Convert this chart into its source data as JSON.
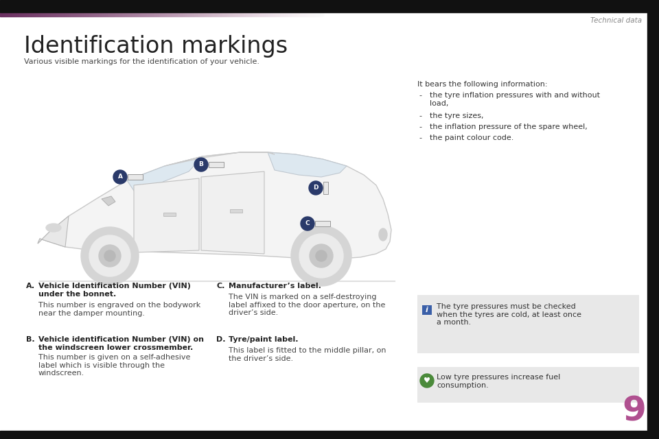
{
  "page_bg": "#ffffff",
  "header_text": "Technical data",
  "header_color": "#888888",
  "title": "Identification markings",
  "title_color": "#222222",
  "subtitle": "Various visible markings for the identification of your vehicle.",
  "subtitle_color": "#444444",
  "right_info_title": "It bears the following information:",
  "right_info_bullets": [
    "the tyre inflation pressures with and without\nload,",
    "the tyre sizes,",
    "the inflation pressure of the spare wheel,",
    "the paint colour code."
  ],
  "note_box1_color": "#e8e8e8",
  "note_box1_icon_color": "#3a5fa8",
  "note_box1_text": "The tyre pressures must be checked\nwhen the tyres are cold, at least once\na month.",
  "note_box2_color": "#e8e8e8",
  "note_box2_icon_color": "#4a8a3a",
  "note_box2_text": "Low tyre pressures increase fuel\nconsumption.",
  "section_number_color": "#b05090",
  "section_number": "9",
  "label_a_letter": "A.",
  "label_a_title_bold": "Vehicle Identification Number (VIN)\nunder the bonnet.",
  "label_a_body": "This number is engraved on the bodywork\nnear the damper mounting.",
  "label_b_letter": "B.",
  "label_b_title_bold": "Vehicle identification Number (VIN) on\nthe windscreen lower crossmember.",
  "label_b_body": "This number is given on a self-adhesive\nlabel which is visible through the\nwindscreen.",
  "label_c_letter": "C.",
  "label_c_title_bold": "Manufacturer’s label.",
  "label_c_body": "The VIN is marked on a self-destroying\nlabel affixed to the door aperture, on the\ndriver’s side.",
  "label_d_letter": "D.",
  "label_d_title_bold": "Tyre/paint label.",
  "label_d_body": "This label is fitted to the middle pillar, on\nthe driver’s side.",
  "dot_color": "#2a3a6a",
  "dot_text_color": "#ffffff",
  "right_border_color": "#111111",
  "bottom_bar_color": "#111111"
}
